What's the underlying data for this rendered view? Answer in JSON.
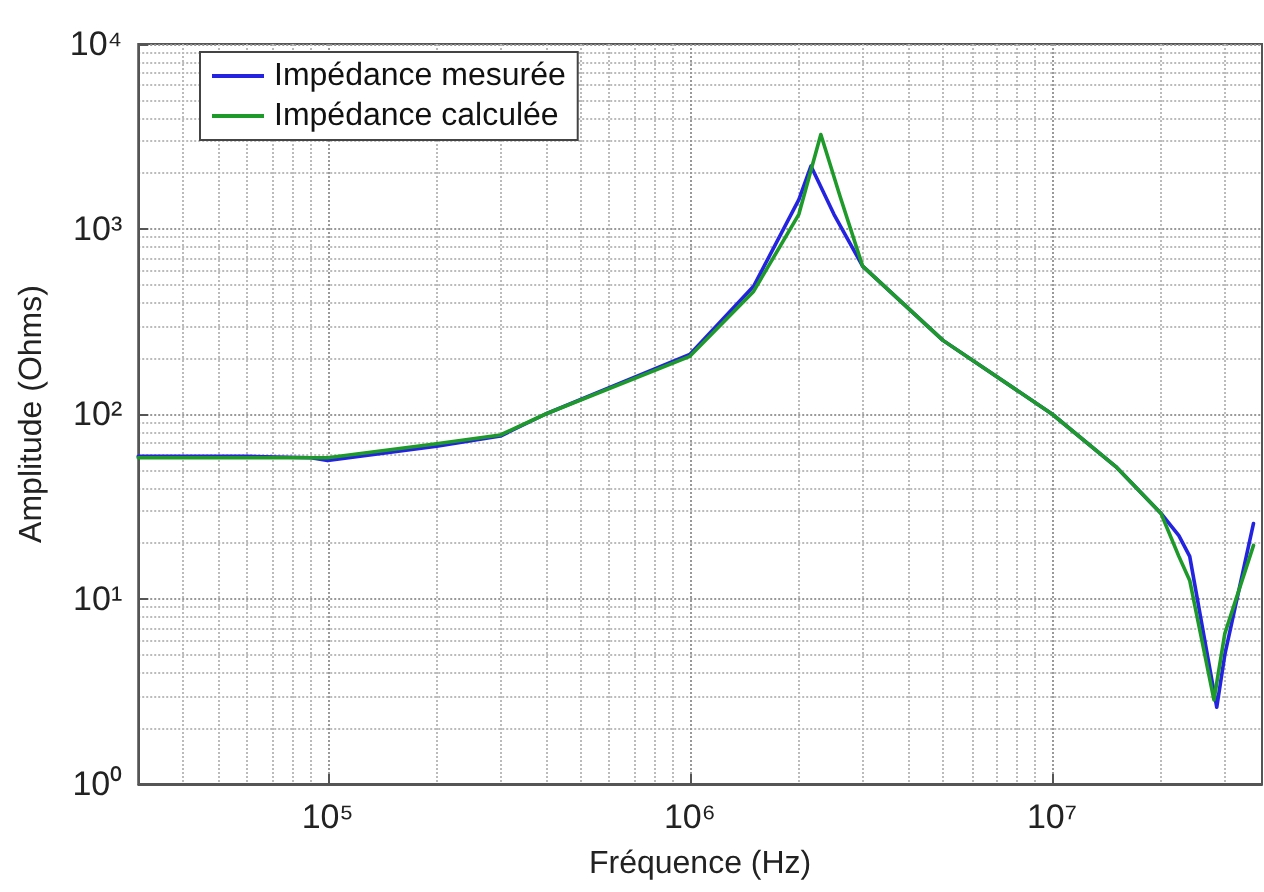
{
  "chart_data": {
    "type": "line",
    "xlabel": "Fréquence (Hz)",
    "ylabel": "Amplitude (Ohms)",
    "log": "xy",
    "grid": true,
    "legend": "top left",
    "line_style": "solid",
    "marker": "none",
    "xlim": [
      30000,
      38000000
    ],
    "ylim": [
      1,
      10000
    ],
    "xticks": [
      {
        "value": 100000,
        "label": "10⁵"
      },
      {
        "value": 1000000,
        "label": "10⁶"
      },
      {
        "value": 10000000,
        "label": "10⁷"
      }
    ],
    "yticks": [
      {
        "value": 1,
        "label": "10⁰"
      },
      {
        "value": 10,
        "label": "10¹"
      },
      {
        "value": 100,
        "label": "10²"
      },
      {
        "value": 1000,
        "label": "10³"
      },
      {
        "value": 10000,
        "label": "10⁴"
      }
    ],
    "series": [
      {
        "name": "Impédance mesurée",
        "color": "#2323e0",
        "x": [
          30000,
          60000,
          90000,
          100000,
          200000,
          300000,
          400000,
          1000000,
          1500000,
          2000000,
          2160000,
          2500000,
          3000000,
          5000000,
          10000000,
          15000000,
          20000000,
          22400000,
          24000000,
          28500000,
          30000000,
          36000000
        ],
        "values": [
          59,
          59,
          58,
          56,
          67,
          76,
          100,
          210,
          490,
          1440,
          2190,
          1200,
          630,
          250,
          100,
          52,
          29,
          22,
          17,
          2.6,
          5,
          25.6
        ]
      },
      {
        "name": "Impédance calculée",
        "color": "#1e9a2a",
        "x": [
          30000,
          60000,
          90000,
          100000,
          200000,
          300000,
          400000,
          1000000,
          1500000,
          2000000,
          2300000,
          2600000,
          3000000,
          5000000,
          10000000,
          15000000,
          20000000,
          22400000,
          24000000,
          28000000,
          30000000,
          36000000
        ],
        "values": [
          58,
          58,
          58,
          58,
          69,
          77,
          100,
          205,
          460,
          1200,
          3240,
          1500,
          630,
          250,
          100,
          52,
          29,
          17,
          12.6,
          2.85,
          6.5,
          19.5
        ]
      }
    ]
  }
}
